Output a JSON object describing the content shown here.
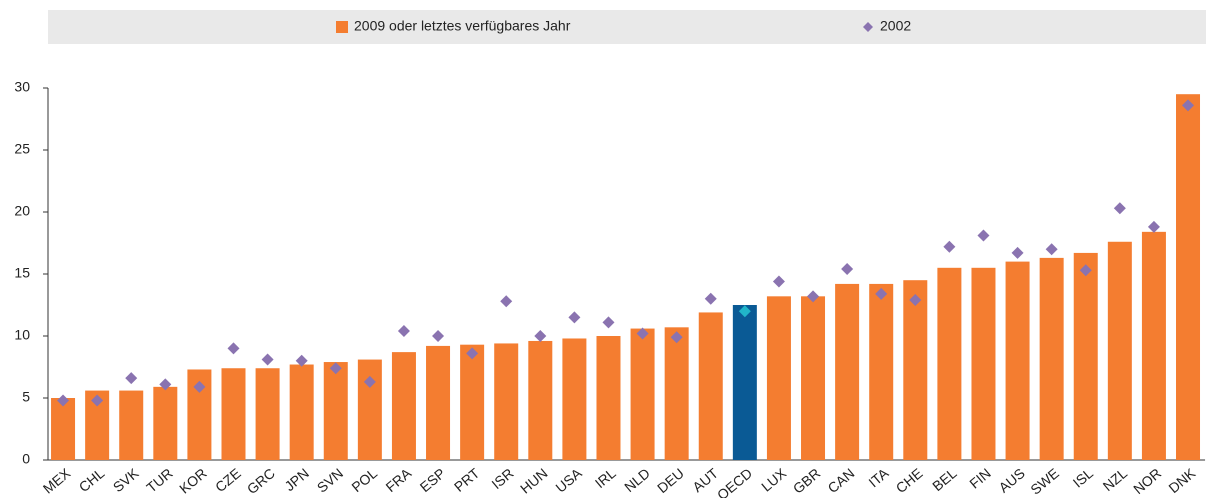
{
  "chart_data": {
    "type": "bar",
    "categories": [
      "MEX",
      "CHL",
      "SVK",
      "TUR",
      "KOR",
      "CZE",
      "GRC",
      "JPN",
      "SVN",
      "POL",
      "FRA",
      "ESP",
      "PRT",
      "ISR",
      "HUN",
      "USA",
      "IRL",
      "NLD",
      "DEU",
      "AUT",
      "OECD",
      "LUX",
      "GBR",
      "CAN",
      "ITA",
      "CHE",
      "BEL",
      "FIN",
      "AUS",
      "SWE",
      "ISL",
      "NZL",
      "NOR",
      "DNK"
    ],
    "series": [
      {
        "name": "2009 oder letztes verfügbares Jahr",
        "type": "bar",
        "color": "#f47d30",
        "colors": [
          "#f47d30",
          "#f47d30",
          "#f47d30",
          "#f47d30",
          "#f47d30",
          "#f47d30",
          "#f47d30",
          "#f47d30",
          "#f47d30",
          "#f47d30",
          "#f47d30",
          "#f47d30",
          "#f47d30",
          "#f47d30",
          "#f47d30",
          "#f47d30",
          "#f47d30",
          "#f47d30",
          "#f47d30",
          "#f47d30",
          "#0a5a95",
          "#f47d30",
          "#f47d30",
          "#f47d30",
          "#f47d30",
          "#f47d30",
          "#f47d30",
          "#f47d30",
          "#f47d30",
          "#f47d30",
          "#f47d30",
          "#f47d30",
          "#f47d30",
          "#f47d30"
        ],
        "values": [
          5.0,
          5.6,
          5.6,
          5.9,
          7.3,
          7.4,
          7.4,
          7.7,
          7.9,
          8.1,
          8.7,
          9.2,
          9.3,
          9.4,
          9.6,
          9.8,
          10.0,
          10.6,
          10.7,
          11.9,
          12.5,
          13.2,
          13.2,
          14.2,
          14.2,
          14.5,
          15.5,
          15.5,
          16.0,
          16.3,
          16.7,
          17.6,
          18.4,
          29.5
        ]
      },
      {
        "name": "2002",
        "type": "scatter",
        "color": "#8a73b0",
        "colors": [
          "#8a73b0",
          "#8a73b0",
          "#8a73b0",
          "#8a73b0",
          "#8a73b0",
          "#8a73b0",
          "#8a73b0",
          "#8a73b0",
          "#8a73b0",
          "#8a73b0",
          "#8a73b0",
          "#8a73b0",
          "#8a73b0",
          "#8a73b0",
          "#8a73b0",
          "#8a73b0",
          "#8a73b0",
          "#8a73b0",
          "#8a73b0",
          "#8a73b0",
          "#21b5c9",
          "#8a73b0",
          "#8a73b0",
          "#8a73b0",
          "#8a73b0",
          "#8a73b0",
          "#8a73b0",
          "#8a73b0",
          "#8a73b0",
          "#8a73b0",
          "#8a73b0",
          "#8a73b0",
          "#8a73b0",
          "#8a73b0"
        ],
        "values": [
          4.8,
          4.8,
          6.6,
          6.1,
          5.9,
          9.0,
          8.1,
          8.0,
          7.4,
          6.3,
          10.4,
          10.0,
          8.6,
          12.8,
          10.0,
          11.5,
          11.1,
          10.2,
          9.9,
          13.0,
          12.0,
          14.4,
          13.2,
          15.4,
          13.4,
          12.9,
          17.2,
          18.1,
          16.7,
          17.0,
          15.3,
          20.3,
          18.8,
          28.6
        ]
      }
    ],
    "ylim": [
      0,
      30
    ],
    "yticks": [
      0,
      5,
      10,
      15,
      20,
      25,
      30
    ],
    "grid": false,
    "legend": "top"
  }
}
